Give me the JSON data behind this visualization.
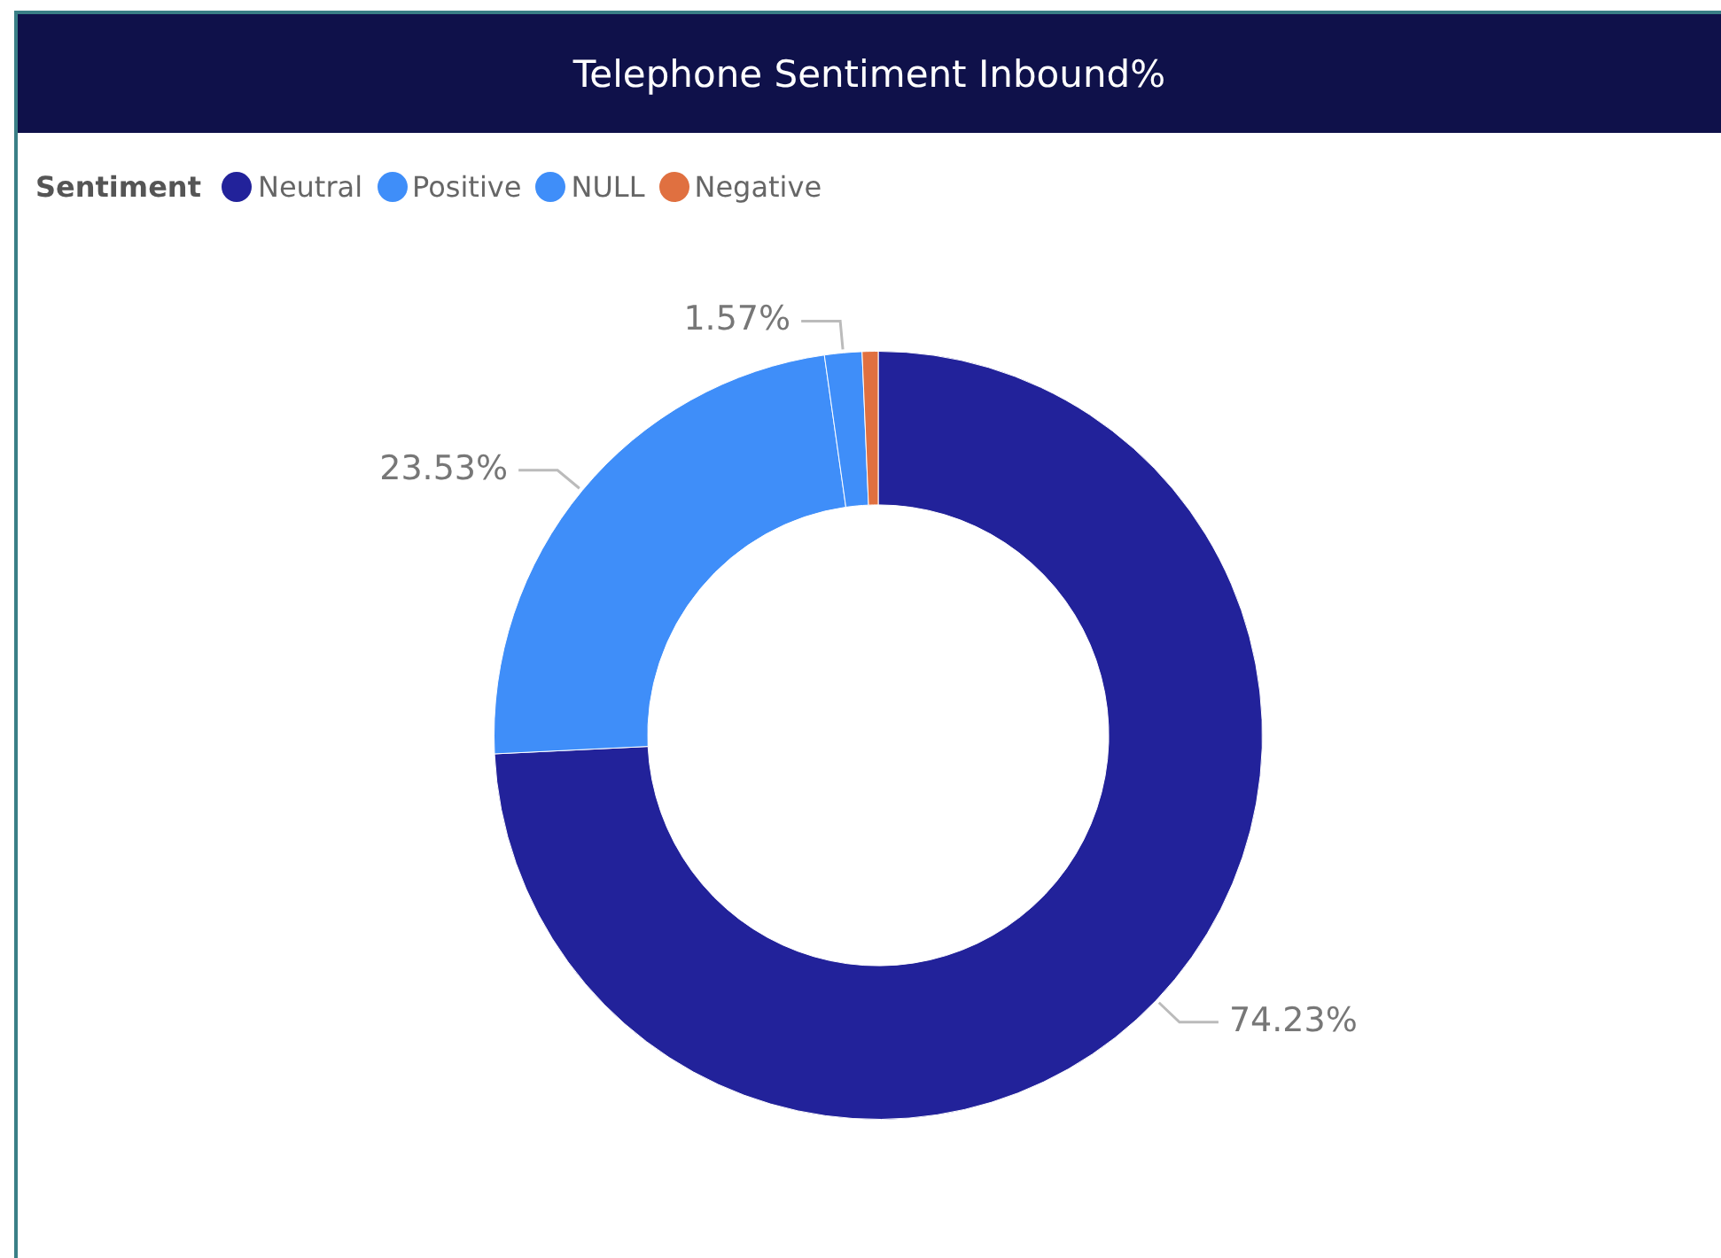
{
  "chart_data": {
    "type": "donut",
    "title": "Telephone Sentiment Inbound%",
    "legend_title": "Sentiment",
    "legend": "top left",
    "categories": [
      "Neutral",
      "Positive",
      "NULL",
      "Negative"
    ],
    "values": [
      74.23,
      23.53,
      1.57,
      0.67
    ],
    "colors": [
      "#22229a",
      "#3f8ef9",
      "#3f8ef9",
      "#e07040"
    ],
    "value_labels": [
      "74.23%",
      "23.53%",
      "1.57%",
      null
    ]
  }
}
